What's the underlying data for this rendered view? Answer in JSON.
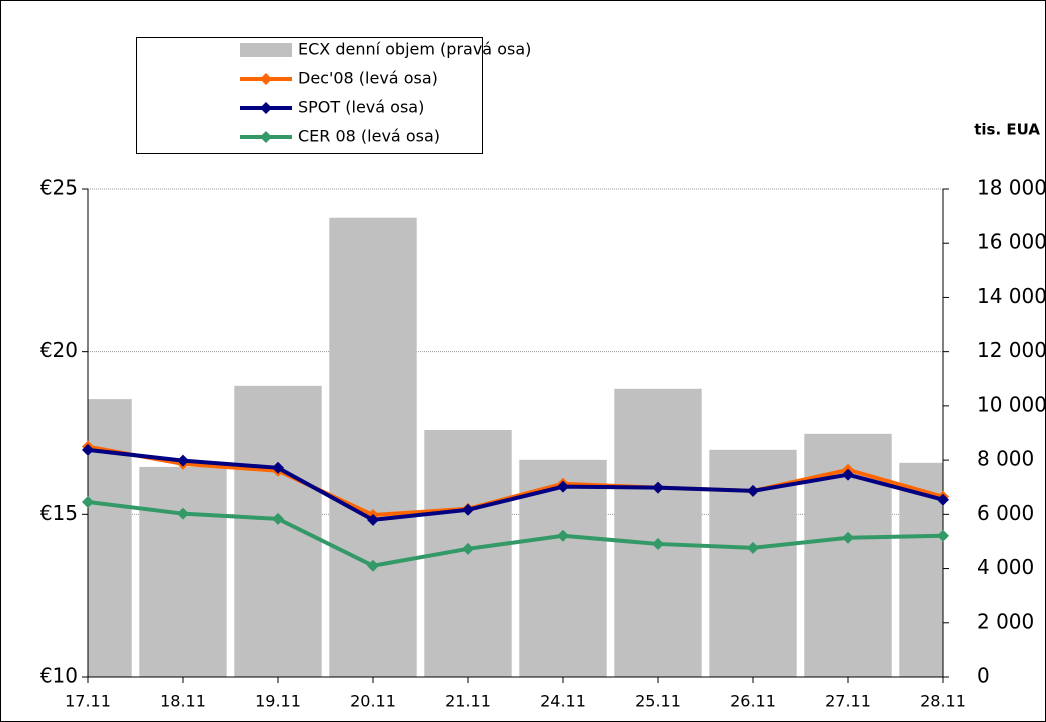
{
  "chart_data": {
    "type": "combo",
    "categories": [
      "17.11",
      "18.11",
      "19.11",
      "20.11",
      "21.11",
      "24.11",
      "25.11",
      "26.11",
      "27.11",
      "28.11"
    ],
    "series": [
      {
        "name": "ECX denní objem (pravá osa)",
        "type": "bar",
        "axis": "y2",
        "color": "#c0c0c0",
        "values": [
          10250,
          7750,
          10740,
          16940,
          9110,
          8010,
          10630,
          8380,
          8970,
          7900
        ]
      },
      {
        "name": "Dec'08 (levá osa)",
        "type": "line",
        "color": "#ff6600",
        "values": [
          17.08,
          16.55,
          16.34,
          14.98,
          15.17,
          15.94,
          15.82,
          15.72,
          16.37,
          15.54
        ]
      },
      {
        "name": "SPOT (levá osa)",
        "type": "line",
        "color": "#000080",
        "values": [
          16.98,
          16.65,
          16.43,
          14.83,
          15.14,
          15.85,
          15.82,
          15.72,
          16.22,
          15.45
        ]
      },
      {
        "name": "CER 08 (levá osa)",
        "type": "line",
        "color": "#339966",
        "values": [
          15.38,
          15.02,
          14.86,
          13.42,
          13.94,
          14.34,
          14.09,
          13.97,
          14.28,
          14.34
        ]
      }
    ],
    "ylim": [
      10,
      25
    ],
    "yticks": [
      {
        "value": 10,
        "label": "€10"
      },
      {
        "value": 15,
        "label": "€15"
      },
      {
        "value": 20,
        "label": "€20"
      },
      {
        "value": 25,
        "label": "€25"
      }
    ],
    "y2label": "tis. EUA",
    "y2lim": [
      0,
      18000
    ],
    "y2ticks": [
      0,
      {
        "value": 2000,
        "label": "2 000"
      },
      {
        "value": 4000,
        "label": "4 000"
      },
      {
        "value": 6000,
        "label": "6 000"
      },
      {
        "value": 8000,
        "label": "8 000"
      },
      {
        "value": 10000,
        "label": "10 000"
      },
      {
        "value": 12000,
        "label": "12 000"
      },
      {
        "value": 14000,
        "label": "14 000"
      },
      {
        "value": 16000,
        "label": "16 000"
      },
      {
        "value": 18000,
        "label": "18 000"
      }
    ],
    "grid": true
  }
}
